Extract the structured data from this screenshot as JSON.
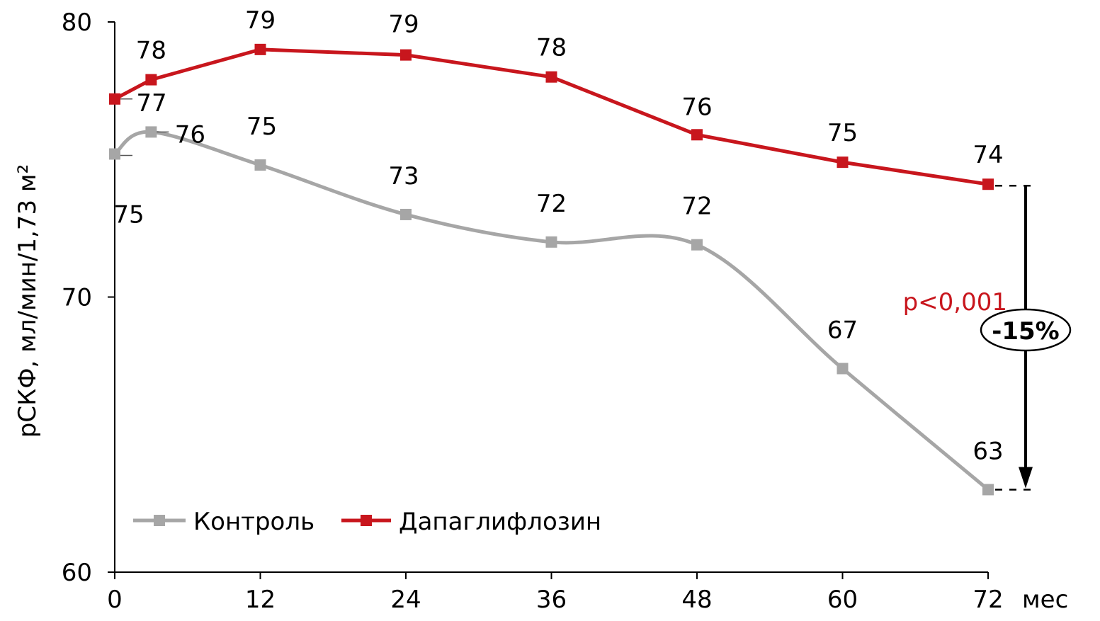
{
  "chart_data": {
    "type": "line",
    "title": "",
    "xlabel": "мес",
    "ylabel": "рСКФ, мл/мин/1,73 м²",
    "xlim": [
      0,
      72
    ],
    "ylim": [
      60,
      80
    ],
    "x_ticks": [
      "0",
      "12",
      "24",
      "36",
      "48",
      "60",
      "72"
    ],
    "y_ticks": [
      "60",
      "70",
      "80"
    ],
    "grid": false,
    "legend_position": "bottom-left",
    "series": [
      {
        "name": "Контроль",
        "color": "#a6a6a6",
        "smooth": true,
        "x": [
          0,
          3,
          12,
          24,
          36,
          48,
          60,
          72
        ],
        "values": [
          75.2,
          76.0,
          74.8,
          73.0,
          72.0,
          71.9,
          67.4,
          63.0
        ],
        "labels": [
          "75",
          "76",
          "75",
          "73",
          "72",
          "72",
          "67",
          "63"
        ]
      },
      {
        "name": "Дапаглифлозин",
        "color": "#c8161d",
        "smooth": false,
        "x": [
          0,
          3,
          12,
          24,
          36,
          48,
          60,
          72
        ],
        "values": [
          77.2,
          77.9,
          79.0,
          78.8,
          78.0,
          75.9,
          74.9,
          74.1
        ],
        "labels": [
          "77",
          "78",
          "79",
          "79",
          "78",
          "76",
          "75",
          "74"
        ]
      }
    ],
    "annotations": {
      "p_value": "p<0,001",
      "p_color": "#c8161d",
      "difference": "-15%"
    }
  }
}
